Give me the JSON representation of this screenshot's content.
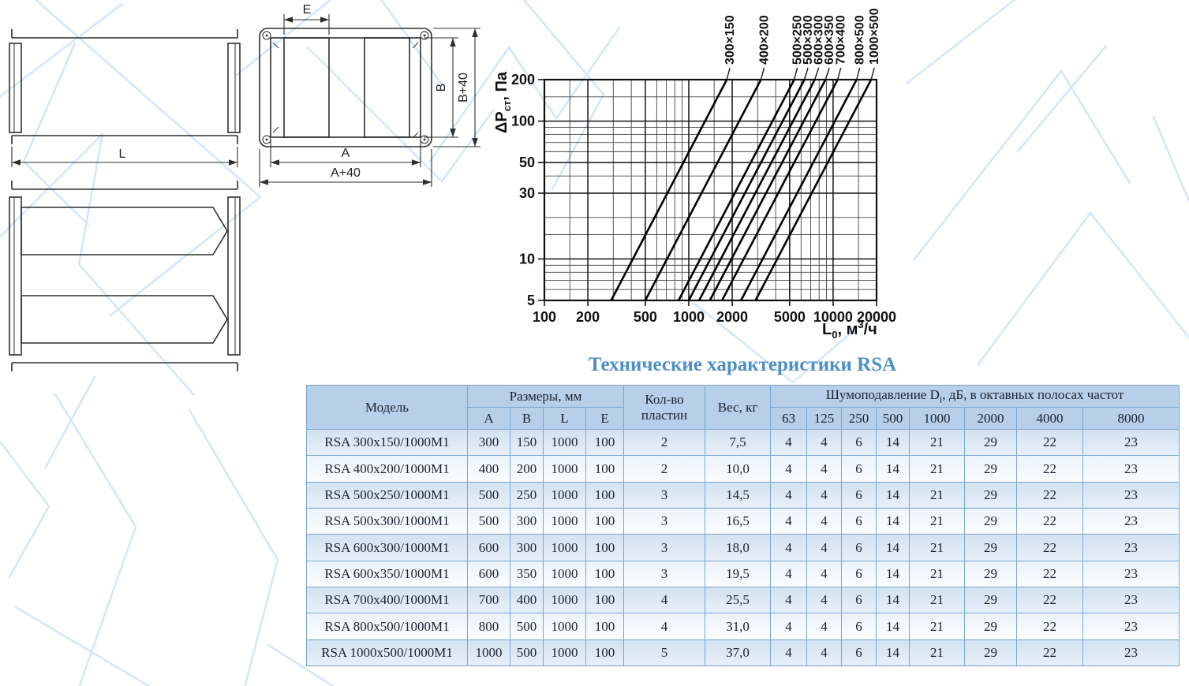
{
  "drawings": {
    "side_view": {
      "dim_labels": {
        "l": "L"
      }
    },
    "front_view": {
      "dim_labels": {
        "e": "E",
        "a": "A",
        "a40": "A+40",
        "b": "B",
        "b40": "B+40"
      }
    }
  },
  "chart_data": {
    "type": "line",
    "title": "",
    "x_axis": {
      "label_main": "L",
      "label_sub": "0",
      "label_mid": ", м",
      "label_sup": "3",
      "label_end": "/ч",
      "scale": "log",
      "min": 100,
      "max": 20000,
      "major_ticks": [
        100,
        200,
        500,
        1000,
        2000,
        5000,
        10000,
        20000
      ],
      "minor_ticks": [
        150,
        300,
        400,
        600,
        700,
        800,
        900,
        1500,
        3000,
        4000,
        6000,
        7000,
        8000,
        9000,
        15000
      ]
    },
    "y_axis": {
      "label_main": "ΔP",
      "label_sub": "ст",
      "label_end": ", Па",
      "scale": "log",
      "min": 5,
      "max": 200,
      "major_ticks": [
        5,
        10,
        30,
        50,
        100,
        200
      ],
      "minor_ticks": [
        6,
        7,
        8,
        9,
        15,
        20,
        40,
        60,
        70,
        80,
        90,
        150
      ]
    },
    "grid": "on",
    "series": [
      {
        "label": "300×150",
        "points": [
          [
            290,
            5
          ],
          [
            1834,
            200
          ]
        ]
      },
      {
        "label": "400×200",
        "points": [
          [
            500,
            5
          ],
          [
            3162,
            200
          ]
        ]
      },
      {
        "label": "500×250",
        "points": [
          [
            850,
            5
          ],
          [
            5376,
            200
          ]
        ]
      },
      {
        "label": "500×300",
        "points": [
          [
            1000,
            5
          ],
          [
            6325,
            200
          ]
        ]
      },
      {
        "label": "600×300",
        "points": [
          [
            1180,
            5
          ],
          [
            7463,
            200
          ]
        ]
      },
      {
        "label": "600×350",
        "points": [
          [
            1400,
            5
          ],
          [
            8854,
            200
          ]
        ]
      },
      {
        "label": "700×400",
        "points": [
          [
            1700,
            5
          ],
          [
            10751,
            200
          ]
        ]
      },
      {
        "label": "800×500",
        "points": [
          [
            2300,
            5
          ],
          [
            14547,
            200
          ]
        ]
      },
      {
        "label": "1000×500",
        "points": [
          [
            2900,
            5
          ],
          [
            18341,
            200
          ]
        ]
      }
    ]
  },
  "table": {
    "title": "Технические характеристики RSA",
    "header": {
      "model": "Модель",
      "dimensions_group": "Размеры, мм",
      "dim_cols": [
        "A",
        "B",
        "L",
        "E"
      ],
      "plates": "Кол-во пластин",
      "weight": "Вес, кг",
      "noise_prefix": "Шумоподавление D",
      "noise_sub": "i",
      "noise_suffix": ", дБ, в октавных полосах частот",
      "freq_cols": [
        "63",
        "125",
        "250",
        "500",
        "1000",
        "2000",
        "4000",
        "8000"
      ]
    },
    "rows": [
      {
        "model": "RSA 300x150/1000M1",
        "a": "300",
        "b": "150",
        "l": "1000",
        "e": "100",
        "plates": "2",
        "weight": "7,5",
        "db": [
          "4",
          "4",
          "6",
          "14",
          "21",
          "29",
          "22",
          "23"
        ]
      },
      {
        "model": "RSA 400x200/1000M1",
        "a": "400",
        "b": "200",
        "l": "1000",
        "e": "100",
        "plates": "2",
        "weight": "10,0",
        "db": [
          "4",
          "4",
          "6",
          "14",
          "21",
          "29",
          "22",
          "23"
        ]
      },
      {
        "model": "RSA 500x250/1000M1",
        "a": "500",
        "b": "250",
        "l": "1000",
        "e": "100",
        "plates": "3",
        "weight": "14,5",
        "db": [
          "4",
          "4",
          "6",
          "14",
          "21",
          "29",
          "22",
          "23"
        ]
      },
      {
        "model": "RSA 500x300/1000M1",
        "a": "500",
        "b": "300",
        "l": "1000",
        "e": "100",
        "plates": "3",
        "weight": "16,5",
        "db": [
          "4",
          "4",
          "6",
          "14",
          "21",
          "29",
          "22",
          "23"
        ]
      },
      {
        "model": "RSA 600x300/1000M1",
        "a": "600",
        "b": "300",
        "l": "1000",
        "e": "100",
        "plates": "3",
        "weight": "18,0",
        "db": [
          "4",
          "4",
          "6",
          "14",
          "21",
          "29",
          "22",
          "23"
        ]
      },
      {
        "model": "RSA 600x350/1000M1",
        "a": "600",
        "b": "350",
        "l": "1000",
        "e": "100",
        "plates": "3",
        "weight": "19,5",
        "db": [
          "4",
          "4",
          "6",
          "14",
          "21",
          "29",
          "22",
          "23"
        ]
      },
      {
        "model": "RSA 700x400/1000M1",
        "a": "700",
        "b": "400",
        "l": "1000",
        "e": "100",
        "plates": "4",
        "weight": "25,5",
        "db": [
          "4",
          "4",
          "6",
          "14",
          "21",
          "29",
          "22",
          "23"
        ]
      },
      {
        "model": "RSA 800x500/1000M1",
        "a": "800",
        "b": "500",
        "l": "1000",
        "e": "100",
        "plates": "4",
        "weight": "31,0",
        "db": [
          "4",
          "4",
          "6",
          "14",
          "21",
          "29",
          "22",
          "23"
        ]
      },
      {
        "model": "RSA 1000x500/1000M1",
        "a": "1000",
        "b": "500",
        "l": "1000",
        "e": "100",
        "plates": "5",
        "weight": "37,0",
        "db": [
          "4",
          "4",
          "6",
          "14",
          "21",
          "29",
          "22",
          "23"
        ]
      }
    ]
  }
}
